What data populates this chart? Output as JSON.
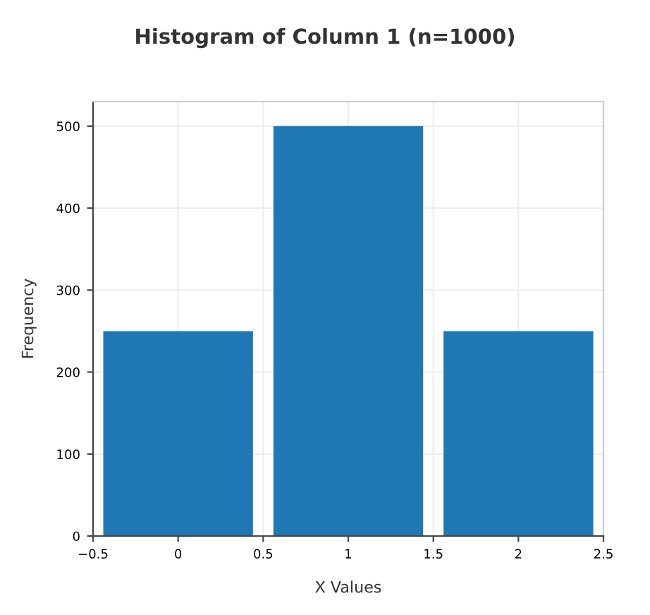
{
  "chart_data": {
    "type": "histogram",
    "title": "Histogram of Column 1 (n=1000)",
    "xlabel": "X Values",
    "ylabel": "Frequency",
    "bins": [
      -0.5,
      0.5,
      1.5,
      2.5
    ],
    "values": [
      250,
      500,
      250
    ],
    "color": "#1f77b4",
    "xlim": [
      -0.5,
      2.5
    ],
    "ylim": [
      0,
      530
    ],
    "xticks": [
      {
        "value": -0.5,
        "label": "−0.5"
      },
      0,
      0.5,
      1,
      1.5,
      2,
      2.5
    ],
    "yticks": [
      0,
      100,
      200,
      300,
      400,
      500
    ],
    "grid": true
  }
}
